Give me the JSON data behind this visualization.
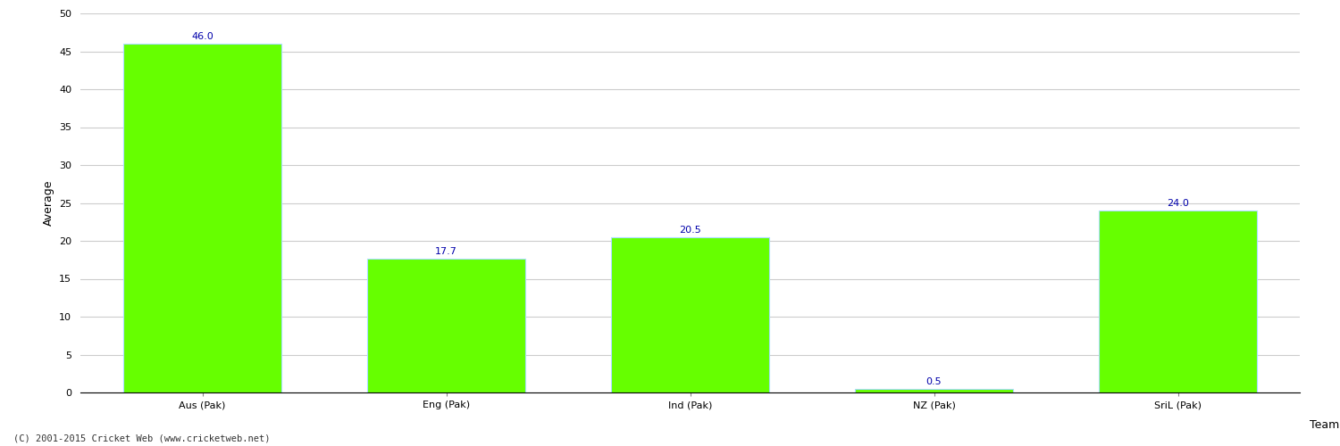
{
  "categories": [
    "Aus (Pak)",
    "Eng (Pak)",
    "Ind (Pak)",
    "NZ (Pak)",
    "SriL (Pak)"
  ],
  "values": [
    46.0,
    17.7,
    20.5,
    0.5,
    24.0
  ],
  "bar_color": "#66ff00",
  "bar_edge_color": "#aaddff",
  "value_color": "#0000aa",
  "xlabel": "Team",
  "ylabel": "Average",
  "ylim": [
    0,
    50
  ],
  "yticks": [
    0,
    5,
    10,
    15,
    20,
    25,
    30,
    35,
    40,
    45,
    50
  ],
  "background_color": "#ffffff",
  "grid_color": "#cccccc",
  "value_fontsize": 8,
  "label_fontsize": 9,
  "tick_fontsize": 8,
  "copyright": "(C) 2001-2015 Cricket Web (www.cricketweb.net)"
}
